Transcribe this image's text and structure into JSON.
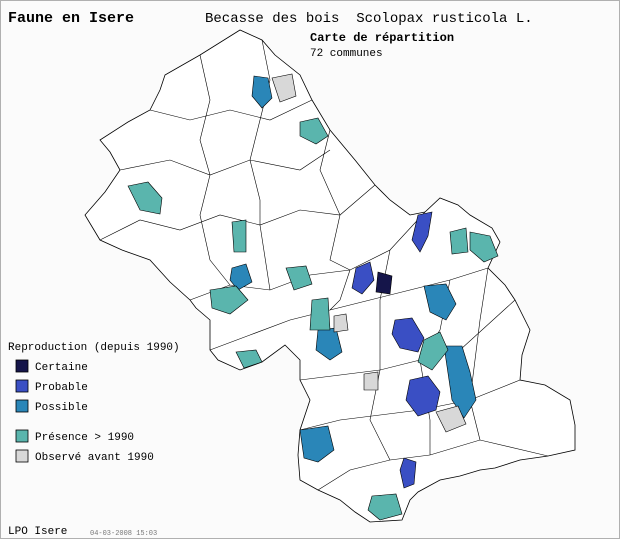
{
  "header": {
    "site": "Faune en Isere",
    "species": "Becasse des bois  Scolopax rusticola L.",
    "map_title": "Carte de répartition",
    "count": "72 communes"
  },
  "legend": {
    "title": "Reproduction (depuis 1990)",
    "items": [
      {
        "label": "Certaine",
        "color": "#15154a"
      },
      {
        "label": "Probable",
        "color": "#3a4fc4"
      },
      {
        "label": "Possible",
        "color": "#2a86b8"
      },
      {
        "label": "Présence > 1990",
        "color": "#5ab5ad"
      },
      {
        "label": "Observé avant 1990",
        "color": "#d8d8d8"
      }
    ]
  },
  "footer": {
    "source": "LPO Isere",
    "timestamp": "04-03-2008 15:03"
  }
}
